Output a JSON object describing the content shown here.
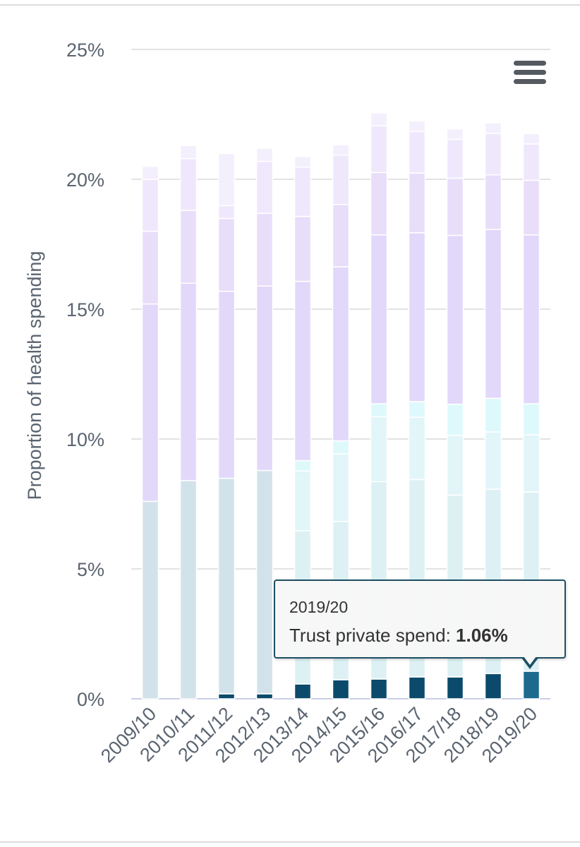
{
  "menu": {
    "icon": "hamburger-menu-icon"
  },
  "tooltip": {
    "title": "2019/20",
    "label": "Trust private spend: ",
    "value": "1.06%"
  },
  "colors": {
    "trust_private": "#0b4a6b",
    "trust_private_hover": "#1e6a8f",
    "light_blue_1": "#d2e2ea",
    "light_blue_2": "#cce6ef",
    "light_cyan_1": "#ddf1f4",
    "light_cyan_2": "#e2f5f8",
    "light_cyan_3": "#def9fc",
    "purple_1": "#e2d8fa",
    "purple_2": "#e8def9",
    "purple_3": "#efe8fc",
    "purple_4": "#f3effd"
  },
  "chart_data": {
    "type": "bar",
    "stacked": true,
    "ylabel": "Proportion of health spending",
    "ylim": [
      0,
      25
    ],
    "yticks": [
      "0%",
      "5%",
      "10%",
      "15%",
      "20%",
      "25%"
    ],
    "categories": [
      "2009/10",
      "2010/11",
      "2011/12",
      "2012/13",
      "2013/14",
      "2014/15",
      "2015/16",
      "2016/17",
      "2017/18",
      "2018/19",
      "2019/20"
    ],
    "series": [
      {
        "name": "Trust private spend",
        "color": "#0b4a6b",
        "values": [
          0,
          0,
          0.19,
          0.19,
          0.57,
          0.73,
          0.76,
          0.84,
          0.84,
          0.97,
          1.06
        ]
      },
      {
        "color": "#d2e2ea",
        "values": [
          7.6,
          8.4,
          8.3,
          8.6,
          0,
          0,
          0,
          0,
          0,
          0,
          0
        ]
      },
      {
        "color": "#ddf1f4",
        "values": [
          0,
          0,
          0,
          0,
          5.9,
          6.1,
          7.6,
          7.6,
          7.0,
          7.1,
          6.9
        ]
      },
      {
        "color": "#e2f5f8",
        "values": [
          0,
          0,
          0,
          0,
          2.3,
          2.6,
          2.5,
          2.4,
          2.3,
          2.2,
          2.2
        ]
      },
      {
        "color": "#def9fc",
        "values": [
          0,
          0,
          0,
          0,
          0.4,
          0.5,
          0.5,
          0.6,
          1.2,
          1.3,
          1.2
        ]
      },
      {
        "color": "#e2d8fa",
        "values": [
          7.6,
          7.6,
          7.2,
          7.1,
          6.9,
          6.7,
          6.5,
          6.5,
          6.5,
          6.5,
          6.5
        ]
      },
      {
        "color": "#e8def9",
        "values": [
          2.8,
          2.8,
          2.8,
          2.8,
          2.5,
          2.4,
          2.4,
          2.3,
          2.2,
          2.1,
          2.1
        ]
      },
      {
        "color": "#efe8fc",
        "values": [
          2.0,
          2.0,
          0.5,
          2.0,
          1.9,
          1.9,
          1.8,
          1.6,
          1.5,
          1.6,
          1.4
        ]
      },
      {
        "color": "#f3effd",
        "values": [
          0.5,
          0.5,
          2.0,
          0.5,
          0.4,
          0.4,
          0.5,
          0.4,
          0.4,
          0.4,
          0.4
        ]
      }
    ],
    "highlight": {
      "category": "2019/20",
      "series": "Trust private spend",
      "value": 1.06
    },
    "grid": true,
    "legend": "none"
  }
}
